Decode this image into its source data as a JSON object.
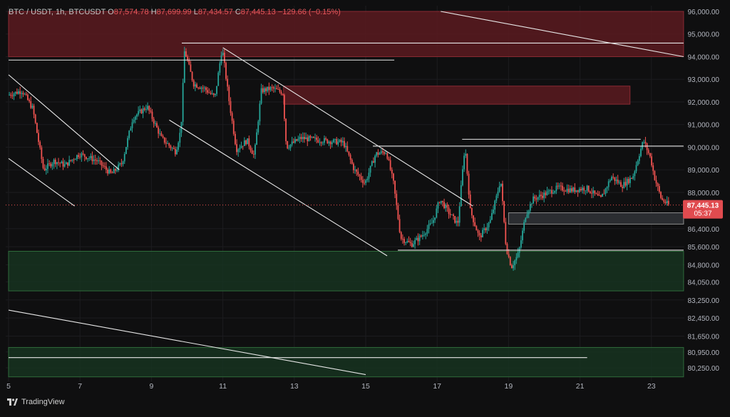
{
  "header": {
    "symbol": "BTC / USDT, 1h, BTCUSDT",
    "open_label": "O",
    "open": "87,574.78",
    "high_label": "H",
    "high": "87,699.99",
    "low_label": "L",
    "low": "87,434.57",
    "close_label": "C",
    "close": "87,445.13",
    "change": "−129.66 (−0.15%)"
  },
  "price_tag": {
    "price": "87,445.13",
    "countdown": "05:37"
  },
  "brand": {
    "name": "TradingView",
    "icon": "tradingview-logo-icon"
  },
  "colors": {
    "background": "#0f0f10",
    "up": "#26a69a",
    "down": "#ef5350",
    "supply_zone": "#5a1a20",
    "demand_zone": "#173520",
    "grid": "#1c1c1f",
    "axis_text": "#b2b5be"
  },
  "chart_data": {
    "type": "candlestick",
    "timeframe": "1h",
    "xlabel": "",
    "ylabel": "",
    "x_range": [
      5.0,
      23.5
    ],
    "ylim": [
      79850,
      96000
    ],
    "grid": true,
    "x_ticks": [
      5,
      7,
      9,
      11,
      13,
      15,
      17,
      19,
      21,
      23
    ],
    "x_tick_labels": [
      "5",
      "7",
      "9",
      "11",
      "13",
      "15",
      "17",
      "19",
      "21",
      "23"
    ],
    "y_ticks": [
      80250,
      80950,
      81650,
      82450,
      83250,
      84050,
      84800,
      85600,
      86400,
      87445.13,
      88000,
      89000,
      90000,
      91000,
      92000,
      93000,
      94000,
      95000,
      96000
    ],
    "y_tick_labels": [
      "80,250.00",
      "80,950.00",
      "81,650.00",
      "82,450.00",
      "83,250.00",
      "84,050.00",
      "84,800.00",
      "85,600.00",
      "86,400.00",
      "87,445.13",
      "88,000.00",
      "89,000.00",
      "90,000.00",
      "91,000.00",
      "92,000.00",
      "93,000.00",
      "94,000.00",
      "95,000.00",
      "96,000.00"
    ],
    "last_price": 87445.13,
    "price_path": [
      [
        5.0,
        92300
      ],
      [
        5.4,
        92500
      ],
      [
        5.7,
        91700
      ],
      [
        6.0,
        89000
      ],
      [
        6.3,
        89400
      ],
      [
        6.6,
        89200
      ],
      [
        7.0,
        89700
      ],
      [
        7.5,
        89400
      ],
      [
        7.9,
        88800
      ],
      [
        8.2,
        89300
      ],
      [
        8.5,
        91300
      ],
      [
        8.9,
        91800
      ],
      [
        9.3,
        90400
      ],
      [
        9.7,
        89800
      ],
      [
        9.85,
        90800
      ],
      [
        9.95,
        94300
      ],
      [
        10.2,
        92800
      ],
      [
        10.5,
        92600
      ],
      [
        10.8,
        92200
      ],
      [
        11.0,
        94400
      ],
      [
        11.2,
        92000
      ],
      [
        11.4,
        89900
      ],
      [
        11.7,
        90300
      ],
      [
        11.9,
        89600
      ],
      [
        12.1,
        92500
      ],
      [
        12.4,
        92600
      ],
      [
        12.7,
        92400
      ],
      [
        12.8,
        90000
      ],
      [
        13.2,
        90400
      ],
      [
        13.8,
        90300
      ],
      [
        14.4,
        90200
      ],
      [
        14.7,
        89000
      ],
      [
        15.0,
        88400
      ],
      [
        15.3,
        89700
      ],
      [
        15.6,
        89800
      ],
      [
        15.8,
        88400
      ],
      [
        16.0,
        86000
      ],
      [
        16.3,
        85700
      ],
      [
        16.6,
        86100
      ],
      [
        16.9,
        86700
      ],
      [
        17.1,
        87700
      ],
      [
        17.4,
        87000
      ],
      [
        17.6,
        86600
      ],
      [
        17.8,
        90100
      ],
      [
        17.95,
        87200
      ],
      [
        18.2,
        86000
      ],
      [
        18.5,
        86700
      ],
      [
        18.7,
        87900
      ],
      [
        18.8,
        88600
      ],
      [
        18.95,
        85600
      ],
      [
        19.1,
        84700
      ],
      [
        19.3,
        85300
      ],
      [
        19.5,
        87000
      ],
      [
        19.7,
        87700
      ],
      [
        20.0,
        87900
      ],
      [
        20.4,
        88200
      ],
      [
        20.8,
        88100
      ],
      [
        21.2,
        88200
      ],
      [
        21.6,
        87700
      ],
      [
        21.9,
        88700
      ],
      [
        22.2,
        88300
      ],
      [
        22.5,
        88700
      ],
      [
        22.7,
        89800
      ],
      [
        22.8,
        90300
      ],
      [
        23.0,
        89500
      ],
      [
        23.1,
        88700
      ],
      [
        23.3,
        87700
      ],
      [
        23.5,
        87445
      ]
    ],
    "zones": [
      {
        "type": "supply",
        "from": [
          5.0,
          94000
        ],
        "to": [
          23.9,
          96000
        ]
      },
      {
        "type": "supply",
        "from": [
          12.7,
          91900
        ],
        "to": [
          22.4,
          92700
        ]
      },
      {
        "type": "range",
        "from": [
          19.0,
          86600
        ],
        "to": [
          23.9,
          87100
        ]
      },
      {
        "type": "demand",
        "from": [
          5.0,
          83650
        ],
        "to": [
          23.9,
          85400
        ]
      },
      {
        "type": "demand",
        "from": [
          5.0,
          79850
        ],
        "to": [
          23.9,
          81150
        ]
      }
    ],
    "levels": [
      {
        "y": 93850,
        "x_start": 5.0,
        "x_end": 15.8
      },
      {
        "y": 94600,
        "x_start": 9.85,
        "x_end": 23.9
      },
      {
        "y": 90050,
        "x_start": 15.2,
        "x_end": 23.9
      },
      {
        "y": 90350,
        "x_start": 17.7,
        "x_end": 22.7
      },
      {
        "y": 85450,
        "x_start": 15.9,
        "x_end": 23.9
      },
      {
        "y": 80700,
        "x_start": 5.0,
        "x_end": 21.2
      }
    ],
    "trendlines": [
      {
        "from": [
          5.0,
          93200
        ],
        "to": [
          8.1,
          89000
        ]
      },
      {
        "from": [
          5.0,
          89500
        ],
        "to": [
          6.85,
          87400
        ]
      },
      {
        "from": [
          9.5,
          91200
        ],
        "to": [
          15.6,
          85200
        ]
      },
      {
        "from": [
          11.0,
          94400
        ],
        "to": [
          18.0,
          87400
        ]
      },
      {
        "from": [
          17.1,
          96000
        ],
        "to": [
          23.9,
          94000
        ]
      },
      {
        "from": [
          5.0,
          82800
        ],
        "to": [
          15.0,
          79950
        ]
      }
    ]
  }
}
